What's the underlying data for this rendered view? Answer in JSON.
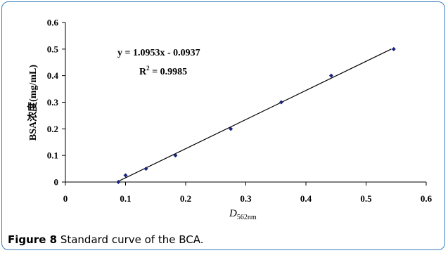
{
  "chart_data": {
    "type": "scatter",
    "xlabel": "D",
    "xlabel_sub": "562nm",
    "ylabel": "BSA浓度(mg/mL)",
    "xlim": [
      0,
      0.6
    ],
    "ylim": [
      0,
      0.6
    ],
    "x_ticks": [
      "0",
      "0.1",
      "0.2",
      "0.3",
      "0.4",
      "0.5",
      "0.6"
    ],
    "y_ticks": [
      "0",
      "0.1",
      "0.2",
      "0.3",
      "0.4",
      "0.5",
      "0.6"
    ],
    "grid": false,
    "series": [
      {
        "x": [
          0.088,
          0.1,
          0.134,
          0.183,
          0.275,
          0.359,
          0.442,
          0.546
        ],
        "y": [
          0.0,
          0.025,
          0.05,
          0.1,
          0.2,
          0.3,
          0.4,
          0.5
        ],
        "color": "#1a237e"
      }
    ],
    "trendline": {
      "slope": 1.0953,
      "intercept": -0.0937,
      "x_range": [
        0.0856,
        0.542
      ],
      "color": "#000000"
    },
    "annotations": {
      "equation": "y = 1.0953x - 0.0937",
      "r2_prefix": "R",
      "r2_sup": "2",
      "r2_value": " = 0.9985"
    }
  },
  "caption": {
    "label": "Figure 8",
    "text": " Standard curve of the BCA."
  }
}
